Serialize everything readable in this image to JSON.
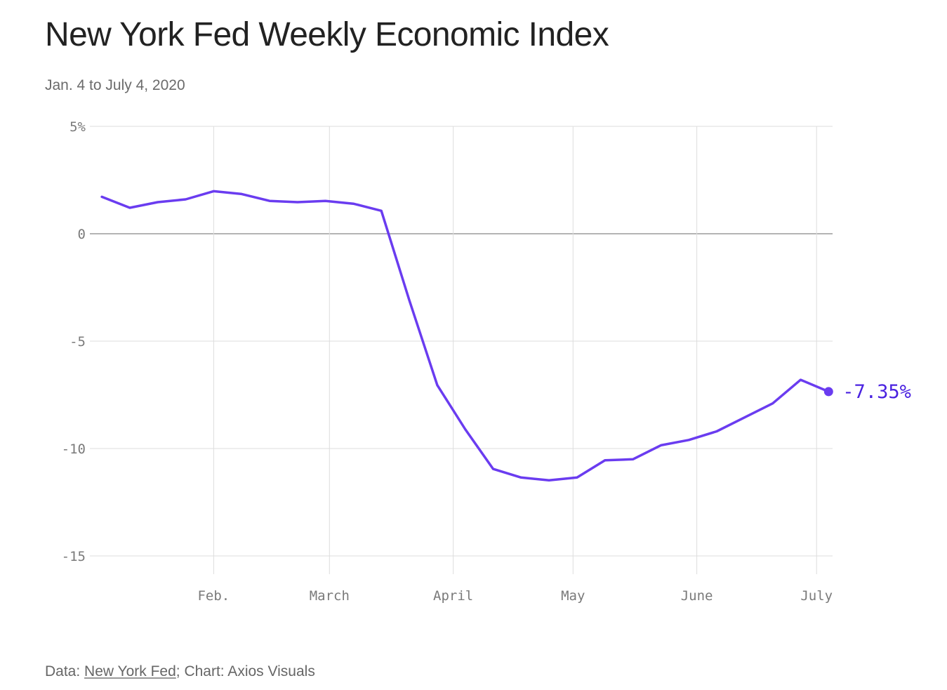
{
  "header": {
    "title": "New York Fed Weekly Economic Index",
    "subtitle": "Jan. 4 to July 4, 2020"
  },
  "footer": {
    "data_prefix": "Data: ",
    "source_link": "New York Fed",
    "chart_credit": "; Chart: Axios Visuals"
  },
  "colors": {
    "line": "#6a3cf0",
    "end_label": "#4a22e0",
    "grid": "#dddddd",
    "zero_line": "#888888"
  },
  "chart_data": {
    "type": "line",
    "title": "New York Fed Weekly Economic Index",
    "subtitle": "Jan. 4 to July 4, 2020",
    "xlabel": "",
    "ylabel": "",
    "x_unit": "date",
    "x_range": [
      "2020-01-01",
      "2020-07-05"
    ],
    "ylim": [
      -15,
      5
    ],
    "grid": true,
    "y_ticks": [
      {
        "value": 5,
        "label": "5%"
      },
      {
        "value": 0,
        "label": "0"
      },
      {
        "value": -5,
        "label": "-5"
      },
      {
        "value": -10,
        "label": "-10"
      },
      {
        "value": -15,
        "label": "-15"
      }
    ],
    "x_ticks": [
      {
        "value": "2020-02-01",
        "label": "Feb."
      },
      {
        "value": "2020-03-01",
        "label": "March"
      },
      {
        "value": "2020-04-01",
        "label": "April"
      },
      {
        "value": "2020-05-01",
        "label": "May"
      },
      {
        "value": "2020-06-01",
        "label": "June"
      },
      {
        "value": "2020-07-01",
        "label": "July"
      }
    ],
    "series": [
      {
        "points": [
          {
            "x": "2020-01-04",
            "y": 1.72
          },
          {
            "x": "2020-01-11",
            "y": 1.21
          },
          {
            "x": "2020-01-18",
            "y": 1.47
          },
          {
            "x": "2020-01-25",
            "y": 1.6
          },
          {
            "x": "2020-02-01",
            "y": 1.98
          },
          {
            "x": "2020-02-08",
            "y": 1.85
          },
          {
            "x": "2020-02-15",
            "y": 1.53
          },
          {
            "x": "2020-02-22",
            "y": 1.47
          },
          {
            "x": "2020-02-29",
            "y": 1.53
          },
          {
            "x": "2020-03-07",
            "y": 1.4
          },
          {
            "x": "2020-03-14",
            "y": 1.07
          },
          {
            "x": "2020-03-21",
            "y": -3.1
          },
          {
            "x": "2020-03-28",
            "y": -7.05
          },
          {
            "x": "2020-04-04",
            "y": -9.1
          },
          {
            "x": "2020-04-11",
            "y": -10.95
          },
          {
            "x": "2020-04-18",
            "y": -11.35
          },
          {
            "x": "2020-04-25",
            "y": -11.48
          },
          {
            "x": "2020-05-02",
            "y": -11.35
          },
          {
            "x": "2020-05-09",
            "y": -10.55
          },
          {
            "x": "2020-05-16",
            "y": -10.5
          },
          {
            "x": "2020-05-23",
            "y": -9.85
          },
          {
            "x": "2020-05-30",
            "y": -9.6
          },
          {
            "x": "2020-06-06",
            "y": -9.2
          },
          {
            "x": "2020-06-13",
            "y": -8.55
          },
          {
            "x": "2020-06-20",
            "y": -7.9
          },
          {
            "x": "2020-06-27",
            "y": -6.8
          },
          {
            "x": "2020-07-04",
            "y": -7.35
          }
        ]
      }
    ],
    "end_label": "-7.35%"
  }
}
